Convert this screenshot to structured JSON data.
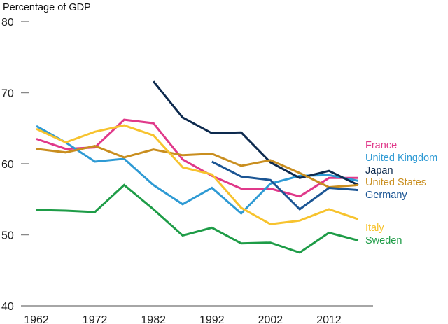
{
  "chart_data": {
    "type": "line",
    "title": "",
    "ylabel": "Percentage of GDP",
    "xlabel": "",
    "ylim": [
      40,
      80
    ],
    "yticks": [
      40,
      50,
      60,
      70,
      80
    ],
    "xlim": [
      1962,
      2017
    ],
    "xticks": [
      1962,
      1972,
      1982,
      1992,
      2002,
      2012
    ],
    "grid": false,
    "legend": "right",
    "x": [
      1962,
      1967,
      1972,
      1977,
      1982,
      1987,
      1992,
      1997,
      2002,
      2007,
      2012,
      2017
    ],
    "series": [
      {
        "name": "France",
        "color": "#e0398a",
        "values": [
          63.5,
          62.1,
          62.3,
          66.2,
          65.7,
          60.6,
          58.3,
          56.5,
          56.5,
          55.4,
          58.0,
          58.0
        ]
      },
      {
        "name": "United Kingdom",
        "color": "#2e9ad4",
        "values": [
          65.3,
          63.0,
          60.3,
          60.7,
          57.0,
          54.3,
          56.6,
          53.0,
          57.2,
          58.3,
          58.4,
          57.6
        ]
      },
      {
        "name": "Japan",
        "color": "#0d2a4e",
        "values": [
          null,
          null,
          null,
          null,
          71.6,
          66.5,
          64.3,
          64.4,
          60.2,
          58.0,
          59.0,
          57.0
        ]
      },
      {
        "name": "United States",
        "color": "#c98e1f",
        "values": [
          62.1,
          61.6,
          62.5,
          60.9,
          62.0,
          61.2,
          61.4,
          59.7,
          60.5,
          58.7,
          56.7,
          57.0
        ]
      },
      {
        "name": "Germany",
        "color": "#1b5594",
        "values": [
          null,
          null,
          null,
          null,
          null,
          null,
          60.3,
          58.2,
          57.7,
          53.6,
          56.6,
          56.3
        ]
      },
      {
        "name": "Italy",
        "color": "#f7c32e",
        "values": [
          64.9,
          63.0,
          64.5,
          65.4,
          64.0,
          59.5,
          58.5,
          53.8,
          51.5,
          52.0,
          53.6,
          52.2
        ]
      },
      {
        "name": "Sweden",
        "color": "#1e9c47",
        "values": [
          53.5,
          53.4,
          53.2,
          57.0,
          53.6,
          49.9,
          51.0,
          48.8,
          48.9,
          47.5,
          50.3,
          49.2
        ]
      }
    ]
  }
}
